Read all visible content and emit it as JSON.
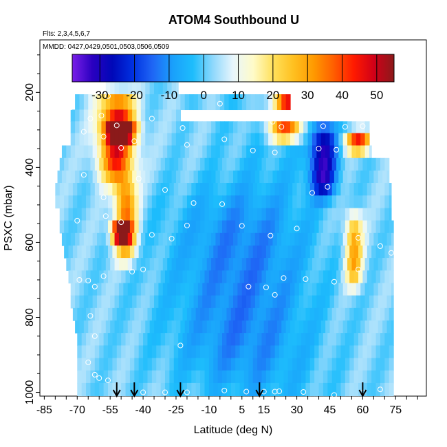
{
  "chart_data": {
    "type": "heatmap",
    "title": "ATOM4 Southbound U",
    "annotations": [
      "Flts: 2,3,4,5,6,7",
      "MMDD: 0427,0429,0501,0503,0506,0509"
    ],
    "xlabel": "Latitude (deg N)",
    "ylabel": "PSXC (mbar)",
    "xlim": [
      -87,
      89
    ],
    "ylim": [
      1010,
      60
    ],
    "x_ticks": [
      -85,
      -70,
      -55,
      -40,
      -25,
      -10,
      5,
      15,
      30,
      45,
      60,
      75
    ],
    "y_ticks": [
      200,
      400,
      600,
      800,
      1000
    ],
    "colorbar": {
      "range": [
        -38,
        55
      ],
      "ticks": [
        -30,
        -20,
        -10,
        0,
        10,
        20,
        30,
        40,
        50
      ],
      "colors": [
        "#7a1fe8",
        "#2a00c0",
        "#0008b8",
        "#0030e0",
        "#1f66f5",
        "#1aa0fb",
        "#1dbdfc",
        "#8fd8fc",
        "#e8f6fc",
        "#fffbc8",
        "#ffe05a",
        "#ffc020",
        "#ff9a00",
        "#ff5e00",
        "#ff1a00",
        "#d00018",
        "#8b1a1a"
      ]
    },
    "variable": "U",
    "units": "",
    "pressure_levels": [
      180,
      230,
      262,
      292,
      325,
      358,
      392,
      425,
      458,
      492,
      525,
      558,
      592,
      625,
      658,
      692,
      725,
      758,
      792,
      825,
      858,
      892,
      925,
      958,
      992
    ],
    "latitude_range_by_level": [
      [
        -57,
        -24
      ],
      [
        -71,
        27
      ],
      [
        -73,
        -23
      ],
      [
        -73,
        63
      ],
      [
        -73,
        63
      ],
      [
        -77,
        64
      ],
      [
        -78,
        72
      ],
      [
        -79,
        72
      ],
      [
        -80,
        73
      ],
      [
        -80,
        73
      ],
      [
        -78,
        73
      ],
      [
        -78,
        74
      ],
      [
        -77,
        74
      ],
      [
        -76,
        74
      ],
      [
        -75,
        74
      ],
      [
        -74,
        74
      ],
      [
        -73,
        74
      ],
      [
        -73,
        74
      ],
      [
        -72,
        74
      ],
      [
        -71,
        74
      ],
      [
        -70,
        74
      ],
      [
        -70,
        74
      ],
      [
        -70,
        74
      ],
      [
        -70,
        74
      ],
      [
        -70,
        74
      ]
    ],
    "wind_features": [
      {
        "name": "jet-south-upper",
        "lat_center": -52,
        "lat_width": 8,
        "p_top": 200,
        "p_bottom": 440,
        "u_max": 45
      },
      {
        "name": "jet-south-core",
        "lat_center": -50,
        "lat_width": 6,
        "p_top": 270,
        "p_bottom": 330,
        "u_max": 50
      },
      {
        "name": "jet-south-lower",
        "lat_center": -48,
        "lat_width": 5,
        "p_top": 430,
        "p_bottom": 650,
        "u_max": 35
      },
      {
        "name": "jet-south-lower-core",
        "lat_center": -50,
        "lat_width": 4,
        "p_top": 540,
        "p_bottom": 600,
        "u_max": 48
      },
      {
        "name": "jet-north-upper",
        "lat_center": 25,
        "lat_width": 8,
        "p_top": 220,
        "p_bottom": 330,
        "u_max": 40
      },
      {
        "name": "jet-north-core",
        "lat_center": 26,
        "lat_width": 5,
        "p_top": 230,
        "p_bottom": 270,
        "u_max": 52
      },
      {
        "name": "jet-north-secondary",
        "lat_center": 58,
        "lat_width": 6,
        "p_top": 300,
        "p_bottom": 360,
        "u_max": 40
      },
      {
        "name": "jet-north-lower",
        "lat_center": 56,
        "lat_width": 4,
        "p_top": 520,
        "p_bottom": 720,
        "u_max": 28
      },
      {
        "name": "easterly-north",
        "lat_center": 42,
        "lat_width": 6,
        "p_top": 280,
        "p_bottom": 480,
        "u_max": -32
      },
      {
        "name": "easterly-tropics",
        "lat_center": 0,
        "lat_width": 30,
        "p_top": 450,
        "p_bottom": 1000,
        "u_max": -12
      }
    ],
    "observation_points": [
      [
        -84,
        240
      ],
      [
        -73,
        240
      ],
      [
        -56,
        210
      ],
      [
        -59,
        262
      ],
      [
        -52,
        288
      ],
      [
        -64,
        270
      ],
      [
        -36,
        270
      ],
      [
        -22,
        295
      ],
      [
        -5,
        230
      ],
      [
        10,
        258
      ],
      [
        19,
        278
      ],
      [
        30,
        260
      ],
      [
        33,
        218
      ],
      [
        42,
        290
      ],
      [
        52,
        292
      ],
      [
        60,
        290
      ],
      [
        -67,
        305
      ],
      [
        -58,
        318
      ],
      [
        -50,
        348
      ],
      [
        -44,
        330
      ],
      [
        -20,
        340
      ],
      [
        -3,
        325
      ],
      [
        23,
        292
      ],
      [
        10,
        355
      ],
      [
        20,
        360
      ],
      [
        40,
        350
      ],
      [
        48,
        353
      ],
      [
        71,
        320
      ],
      [
        -85,
        440
      ],
      [
        -67,
        420
      ],
      [
        -42,
        430
      ],
      [
        -58,
        480
      ],
      [
        -30,
        460
      ],
      [
        -17,
        495
      ],
      [
        -4,
        498
      ],
      [
        37,
        468
      ],
      [
        44,
        452
      ],
      [
        -70,
        542
      ],
      [
        -57,
        530
      ],
      [
        -50,
        546
      ],
      [
        -36,
        580
      ],
      [
        -20,
        555
      ],
      [
        -27,
        590
      ],
      [
        5,
        556
      ],
      [
        18,
        582
      ],
      [
        30,
        563
      ],
      [
        58,
        588
      ],
      [
        68,
        610
      ],
      [
        73,
        628
      ],
      [
        -69,
        700
      ],
      [
        -65,
        702
      ],
      [
        -62,
        718
      ],
      [
        -58,
        690
      ],
      [
        -45,
        678
      ],
      [
        -40,
        672
      ],
      [
        8,
        718
      ],
      [
        16,
        720
      ],
      [
        20,
        740
      ],
      [
        24,
        695
      ],
      [
        34,
        698
      ],
      [
        47,
        705
      ],
      [
        58,
        672
      ],
      [
        -64,
        796
      ],
      [
        -62,
        850
      ],
      [
        -65,
        920
      ],
      [
        -62,
        953
      ],
      [
        -60,
        962
      ],
      [
        -56,
        968
      ],
      [
        -23,
        875
      ],
      [
        -40,
        1000
      ],
      [
        -30,
        1000
      ],
      [
        -20,
        1000
      ],
      [
        -3,
        995
      ],
      [
        7,
        998
      ],
      [
        15,
        998
      ],
      [
        20,
        998
      ],
      [
        22,
        997
      ],
      [
        33,
        999
      ],
      [
        47,
        1007
      ],
      [
        60,
        1000
      ],
      [
        68,
        992
      ]
    ],
    "arrow_latitudes": [
      -52,
      -44,
      -23,
      13,
      60
    ]
  }
}
